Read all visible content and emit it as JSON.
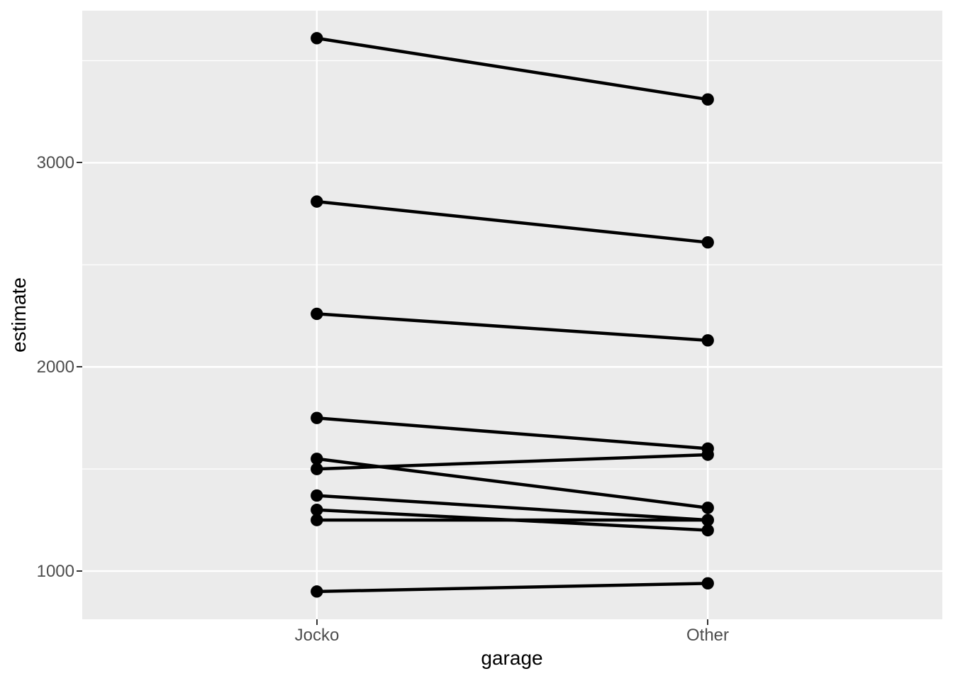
{
  "chart_data": {
    "type": "line",
    "subtype": "paired-slopegraph",
    "title": "",
    "xlabel": "garage",
    "ylabel": "estimate",
    "categories": [
      "Jocko",
      "Other"
    ],
    "x_tick_labels": [
      "Jocko",
      "Other"
    ],
    "y_ticks": [
      1000,
      2000,
      3000
    ],
    "y_tick_labels": [
      "1000",
      "2000",
      "3000"
    ],
    "y_minor_gridlines": [
      1500,
      2500,
      3500
    ],
    "ylim": [
      764,
      3745
    ],
    "grid": "white major and minor horizontal lines, white major vertical lines, on gray panel",
    "legend": "none",
    "series": [
      {
        "name": "pair-01",
        "values": [
          3610,
          3310
        ]
      },
      {
        "name": "pair-02",
        "values": [
          2810,
          2610
        ]
      },
      {
        "name": "pair-03",
        "values": [
          2260,
          2130
        ]
      },
      {
        "name": "pair-04",
        "values": [
          1750,
          1600
        ]
      },
      {
        "name": "pair-05",
        "values": [
          1550,
          1310
        ]
      },
      {
        "name": "pair-06",
        "values": [
          1500,
          1570
        ]
      },
      {
        "name": "pair-07",
        "values": [
          1370,
          1250
        ]
      },
      {
        "name": "pair-08",
        "values": [
          1300,
          1200
        ]
      },
      {
        "name": "pair-09",
        "values": [
          1250,
          1250
        ]
      },
      {
        "name": "pair-10",
        "values": [
          900,
          940
        ]
      }
    ],
    "colors": {
      "page_background": "#FFFFFF",
      "panel_background": "#EBEBEB",
      "gridline": "#FFFFFF",
      "data": "#000000",
      "tick_label": "#4D4D4D",
      "tick_mark": "#333333",
      "axis_title": "#000000"
    }
  }
}
